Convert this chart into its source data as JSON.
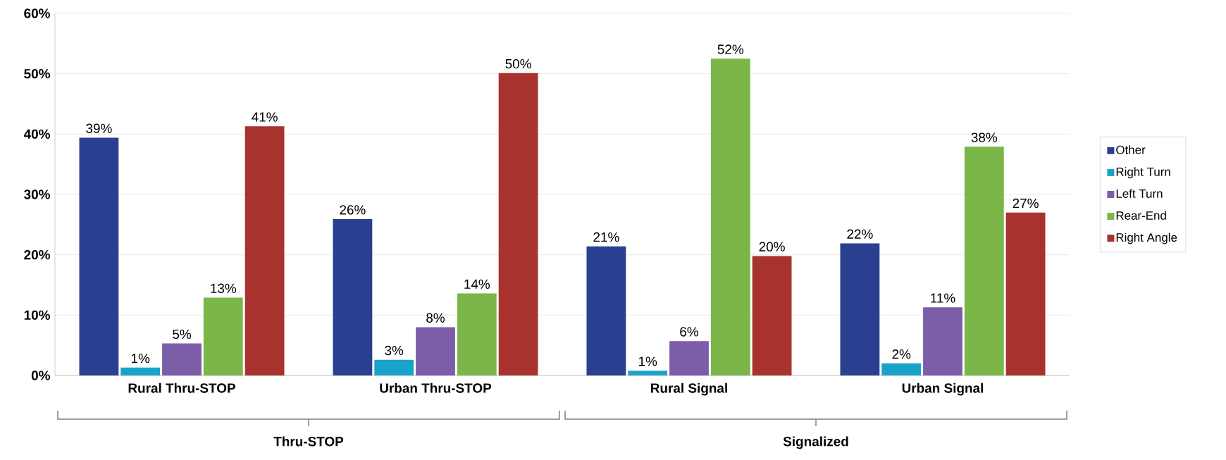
{
  "chart_data": {
    "type": "bar",
    "categories": [
      "Rural Thru-STOP",
      "Urban Thru-STOP",
      "Rural Signal",
      "Urban Signal"
    ],
    "series": [
      {
        "name": "Other",
        "color": "#2a3f8f",
        "values": [
          39.4,
          25.9,
          21.4,
          21.9
        ],
        "value_labels": [
          "39%",
          "26%",
          "21%",
          "22%"
        ]
      },
      {
        "name": "Right Turn",
        "color": "#1aa3c8",
        "values": [
          1.3,
          2.6,
          0.8,
          2.0
        ],
        "value_labels": [
          "1%",
          "3%",
          "1%",
          "2%"
        ]
      },
      {
        "name": "Left Turn",
        "color": "#7b5ea7",
        "values": [
          5.3,
          8.0,
          5.7,
          11.3
        ],
        "value_labels": [
          "5%",
          "8%",
          "6%",
          "11%"
        ]
      },
      {
        "name": "Rear-End",
        "color": "#7ab648",
        "values": [
          12.9,
          13.6,
          52.5,
          37.9
        ],
        "value_labels": [
          "13%",
          "14%",
          "52%",
          "38%"
        ]
      },
      {
        "name": "Right Angle",
        "color": "#a8322d",
        "values": [
          41.3,
          50.1,
          19.8,
          27.0
        ],
        "value_labels": [
          "41%",
          "50%",
          "20%",
          "27%"
        ]
      }
    ],
    "ylim": [
      0,
      60
    ],
    "yticks": [
      {
        "value": 0,
        "label": "0%"
      },
      {
        "value": 10,
        "label": "10%"
      },
      {
        "value": 20,
        "label": "20%"
      },
      {
        "value": 30,
        "label": "30%"
      },
      {
        "value": 40,
        "label": "40%"
      },
      {
        "value": 50,
        "label": "50%"
      },
      {
        "value": 60,
        "label": "60%"
      }
    ],
    "grid": "y",
    "legend": "right",
    "annotations": [
      "Thru-STOP",
      "Signalized"
    ]
  }
}
